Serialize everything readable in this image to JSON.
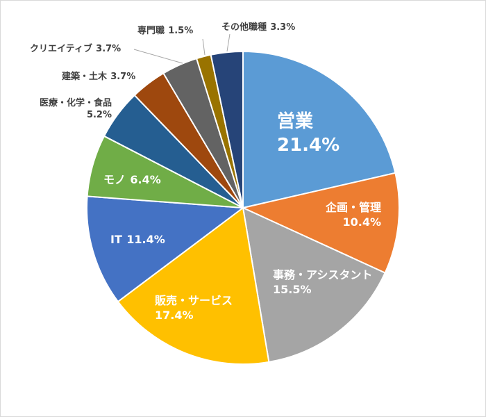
{
  "chart_data": {
    "type": "pie",
    "categories": [
      "営業",
      "企画・管理",
      "事務・アシスタント",
      "販売・サービス",
      "IT",
      "モノ",
      "医療・化学・食品",
      "建築・土木",
      "クリエイティブ",
      "専門職",
      "その他職種"
    ],
    "values": [
      21.4,
      10.4,
      15.5,
      17.4,
      11.4,
      6.4,
      5.2,
      3.7,
      3.7,
      1.5,
      3.3
    ],
    "value_labels": [
      "21.4%",
      "10.4%",
      "15.5%",
      "17.4%",
      "11.4%",
      "6.4%",
      "5.2%",
      "3.7%",
      "3.7%",
      "1.5%",
      "3.3%"
    ],
    "colors": [
      "#5b9bd5",
      "#ed7d31",
      "#a5a5a5",
      "#ffc000",
      "#4472c4",
      "#70ad47",
      "#255e91",
      "#9e480e",
      "#636363",
      "#997300",
      "#264478"
    ]
  }
}
